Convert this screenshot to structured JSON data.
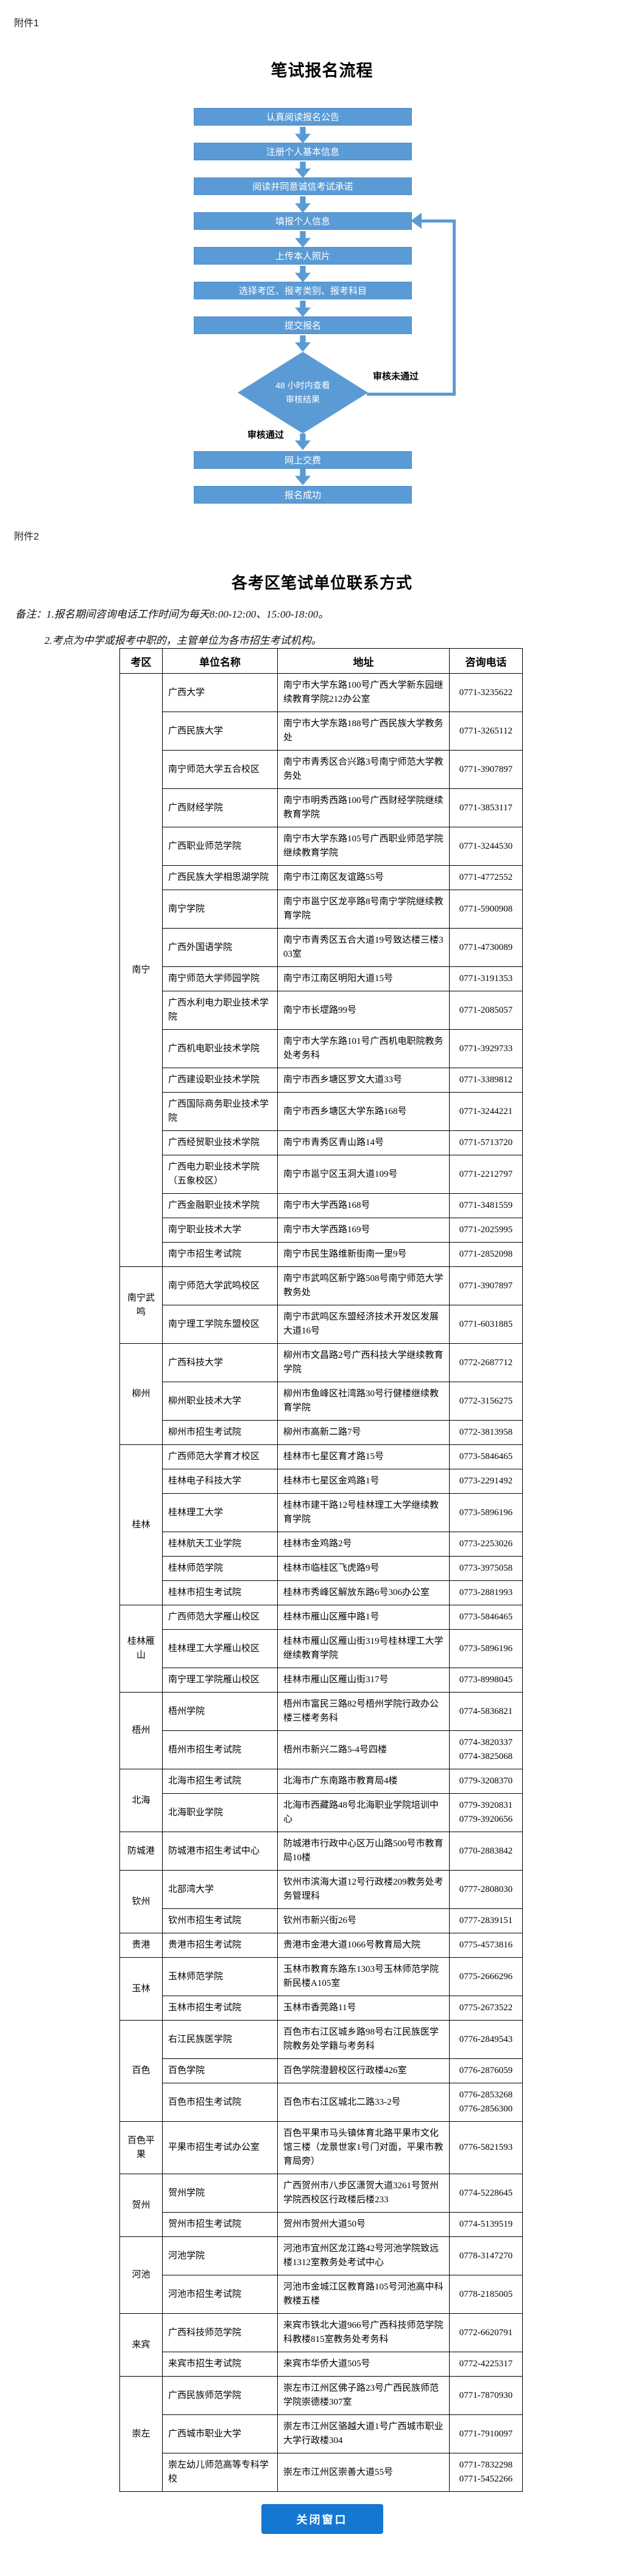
{
  "page": {
    "attachment1_label": "附件1",
    "attachment2_label": "附件2"
  },
  "flowchart": {
    "title": "笔试报名流程",
    "steps": [
      "认真阅读报名公告",
      "注册个人基本信息",
      "阅读并同意诚信考试承诺",
      "填报个人信息",
      "上传本人照片",
      "选择考区、报考类别、报考科目",
      "提交报名"
    ],
    "decision": {
      "line1": "48 小时内查看",
      "line2": "审核结果"
    },
    "fail_label": "审核未通过",
    "pass_label": "审核通过",
    "post_steps": [
      "网上交费",
      "报名成功"
    ],
    "colors": {
      "shape_fill": "#5B9BD5",
      "shape_text": "#ffffff"
    }
  },
  "contact_section": {
    "title": "各考区笔试单位联系方式",
    "notes": [
      "备注：1.报名期间咨询电话工作时间为每天8:00-12:00、15:00-18:00。",
      "2.考点为中学或报考中职的，主管单位为各市招生考试机构。"
    ],
    "table": {
      "headers": [
        "考区",
        "单位名称",
        "地址",
        "咨询电话"
      ],
      "groups": [
        {
          "area": "南宁",
          "units": [
            {
              "name": "广西大学",
              "address": "南宁市大学东路100号广西大学新东园继续教育学院212办公室",
              "phones": [
                "0771-3235622"
              ]
            },
            {
              "name": "广西民族大学",
              "address": "南宁市大学东路188号广西民族大学教务处",
              "phones": [
                "0771-3265112"
              ]
            },
            {
              "name": "南宁师范大学五合校区",
              "address": "南宁市青秀区合兴路3号南宁师范大学教务处",
              "phones": [
                "0771-3907897"
              ]
            },
            {
              "name": "广西财经学院",
              "address": "南宁市明秀西路100号广西财经学院继续教育学院",
              "phones": [
                "0771-3853117"
              ]
            },
            {
              "name": "广西职业师范学院",
              "address": "南宁市大学东路105号广西职业师范学院继续教育学院",
              "phones": [
                "0771-3244530"
              ]
            },
            {
              "name": "广西民族大学相思湖学院",
              "address": "南宁市江南区友谊路55号",
              "phones": [
                "0771-4772552"
              ]
            },
            {
              "name": "南宁学院",
              "address": "南宁市邕宁区龙亭路8号南宁学院继续教育学院",
              "phones": [
                "0771-5900908"
              ]
            },
            {
              "name": "广西外国语学院",
              "address": "南宁市青秀区五合大道19号致达楼三楼303室",
              "phones": [
                "0771-4730089"
              ]
            },
            {
              "name": "南宁师范大学师园学院",
              "address": "南宁市江南区明阳大道15号",
              "phones": [
                "0771-3191353"
              ]
            },
            {
              "name": "广西水利电力职业技术学院",
              "address": "南宁市长堽路99号",
              "phones": [
                "0771-2085057"
              ]
            },
            {
              "name": "广西机电职业技术学院",
              "address": "南宁市大学东路101号广西机电职院教务处考务科",
              "phones": [
                "0771-3929733"
              ]
            },
            {
              "name": "广西建设职业技术学院",
              "address": "南宁市西乡塘区罗文大道33号",
              "phones": [
                "0771-3389812"
              ]
            },
            {
              "name": "广西国际商务职业技术学院",
              "address": "南宁市西乡塘区大学东路168号",
              "phones": [
                "0771-3244221"
              ]
            },
            {
              "name": "广西经贸职业技术学院",
              "address": "南宁市青秀区青山路14号",
              "phones": [
                "0771-5713720"
              ]
            },
            {
              "name": "广西电力职业技术学院（五象校区）",
              "address": "南宁市邕宁区玉洞大道109号",
              "phones": [
                "0771-2212797"
              ]
            },
            {
              "name": "广西金融职业技术学院",
              "address": "南宁市大学西路168号",
              "phones": [
                "0771-3481559"
              ]
            },
            {
              "name": "南宁职业技术大学",
              "address": "南宁市大学西路169号",
              "phones": [
                "0771-2025995"
              ]
            },
            {
              "name": "南宁市招生考试院",
              "address": "南宁市民生路维新街南一里9号",
              "phones": [
                "0771-2852098"
              ]
            }
          ]
        },
        {
          "area": "南宁武鸣",
          "units": [
            {
              "name": "南宁师范大学武鸣校区",
              "address": "南宁市武鸣区新宁路508号南宁师范大学教务处",
              "phones": [
                "0771-3907897"
              ]
            },
            {
              "name": "南宁理工学院东盟校区",
              "address": "南宁市武鸣区东盟经济技术开发区发展大道16号",
              "phones": [
                "0771-6031885"
              ]
            }
          ]
        },
        {
          "area": "柳州",
          "units": [
            {
              "name": "广西科技大学",
              "address": "柳州市文昌路2号广西科技大学继续教育学院",
              "phones": [
                "0772-2687712"
              ]
            },
            {
              "name": "柳州职业技术大学",
              "address": "柳州市鱼峰区社湾路30号行健楼继续教育学院",
              "phones": [
                "0772-3156275"
              ]
            },
            {
              "name": "柳州市招生考试院",
              "address": "柳州市高新二路7号",
              "phones": [
                "0772-3813958"
              ]
            }
          ]
        },
        {
          "area": "桂林",
          "units": [
            {
              "name": "广西师范大学育才校区",
              "address": "桂林市七星区育才路15号",
              "phones": [
                "0773-5846465"
              ]
            },
            {
              "name": "桂林电子科技大学",
              "address": "桂林市七星区金鸡路1号",
              "phones": [
                "0773-2291492"
              ]
            },
            {
              "name": "桂林理工大学",
              "address": "桂林市建干路12号桂林理工大学继续教育学院",
              "phones": [
                "0773-5896196"
              ]
            },
            {
              "name": "桂林航天工业学院",
              "address": "桂林市金鸡路2号",
              "phones": [
                "0773-2253026"
              ]
            },
            {
              "name": "桂林师范学院",
              "address": "桂林市临桂区飞虎路9号",
              "phones": [
                "0773-3975058"
              ]
            },
            {
              "name": "桂林市招生考试院",
              "address": "桂林市秀峰区解放东路6号306办公室",
              "phones": [
                "0773-2881993"
              ]
            }
          ]
        },
        {
          "area": "桂林雁山",
          "units": [
            {
              "name": "广西师范大学雁山校区",
              "address": "桂林市雁山区雁中路1号",
              "phones": [
                "0773-5846465"
              ]
            },
            {
              "name": "桂林理工大学雁山校区",
              "address": "桂林市雁山区雁山街319号桂林理工大学继续教育学院",
              "phones": [
                "0773-5896196"
              ]
            },
            {
              "name": "南宁理工学院雁山校区",
              "address": "桂林市雁山区雁山街317号",
              "phones": [
                "0773-8998045"
              ]
            }
          ]
        },
        {
          "area": "梧州",
          "units": [
            {
              "name": "梧州学院",
              "address": "梧州市富民三路82号梧州学院行政办公楼三楼考务科",
              "phones": [
                "0774-5836821"
              ]
            },
            {
              "name": "梧州市招生考试院",
              "address": "梧州市新兴二路5-4号四楼",
              "phones": [
                "0774-3820337",
                "0774-3825068"
              ]
            }
          ]
        },
        {
          "area": "北海",
          "units": [
            {
              "name": "北海市招生考试院",
              "address": "北海市广东南路市教育局4楼",
              "phones": [
                "0779-3208370"
              ]
            },
            {
              "name": "北海职业学院",
              "address": "北海市西藏路48号北海职业学院培训中心",
              "phones": [
                "0779-3920831",
                "0779-3920656"
              ]
            }
          ]
        },
        {
          "area": "防城港",
          "units": [
            {
              "name": "防城港市招生考试中心",
              "address": "防城港市行政中心区万山路500号市教育局10楼",
              "phones": [
                "0770-2883842"
              ]
            }
          ]
        },
        {
          "area": "钦州",
          "units": [
            {
              "name": "北部湾大学",
              "address": "钦州市滨海大道12号行政楼209教务处考务管理科",
              "phones": [
                "0777-2808030"
              ]
            },
            {
              "name": "钦州市招生考试院",
              "address": "钦州市新兴街26号",
              "phones": [
                "0777-2839151"
              ]
            }
          ]
        },
        {
          "area": "贵港",
          "units": [
            {
              "name": "贵港市招生考试院",
              "address": "贵港市金港大道1066号教育局大院",
              "phones": [
                "0775-4573816"
              ]
            }
          ]
        },
        {
          "area": "玉林",
          "units": [
            {
              "name": "玉林师范学院",
              "address": "玉林市教育东路东1303号玉林师范学院新民楼A105室",
              "phones": [
                "0775-2666296"
              ]
            },
            {
              "name": "玉林市招生考试院",
              "address": "玉林市香莞路11号",
              "phones": [
                "0775-2673522"
              ]
            }
          ]
        },
        {
          "area": "百色",
          "units": [
            {
              "name": "右江民族医学院",
              "address": "百色市右江区城乡路98号右江民族医学院教务处学籍与考务科",
              "phones": [
                "0776-2849543"
              ]
            },
            {
              "name": "百色学院",
              "address": "百色学院澄碧校区行政楼426室",
              "phones": [
                "0776-2876059"
              ]
            },
            {
              "name": "百色市招生考试院",
              "address": "百色市右江区城北二路33-2号",
              "phones": [
                "0776-2853268",
                "0776-2856300"
              ]
            }
          ]
        },
        {
          "area": "百色平果",
          "units": [
            {
              "name": "平果市招生考试办公室",
              "address": "百色平果市马头镇体育北路平果市文化馆三楼（龙景世家1号门对面，平果市教育局旁）",
              "phones": [
                "0776-5821593"
              ]
            }
          ]
        },
        {
          "area": "贺州",
          "units": [
            {
              "name": "贺州学院",
              "address": "广西贺州市八步区潇贺大道3261号贺州学院西校区行政楼后楼233",
              "phones": [
                "0774-5228645"
              ]
            },
            {
              "name": "贺州市招生考试院",
              "address": "贺州市贺州大道50号",
              "phones": [
                "0774-5139519"
              ]
            }
          ]
        },
        {
          "area": "河池",
          "units": [
            {
              "name": "河池学院",
              "address": "河池市宜州区龙江路42号河池学院致远楼1312室教务处考试中心",
              "phones": [
                "0778-3147270"
              ]
            },
            {
              "name": "河池市招生考试院",
              "address": "河池市金城江区教育路105号河池高中科教楼五楼",
              "phones": [
                "0778-2185005"
              ]
            }
          ]
        },
        {
          "area": "来宾",
          "units": [
            {
              "name": "广西科技师范学院",
              "address": "来宾市铁北大道966号广西科技师范学院科教楼815室教务处考务科",
              "phones": [
                "0772-6620791"
              ]
            },
            {
              "name": "来宾市招生考试院",
              "address": "来宾市华侨大道505号",
              "phones": [
                "0772-4225317"
              ]
            }
          ]
        },
        {
          "area": "崇左",
          "units": [
            {
              "name": "广西民族师范学院",
              "address": "崇左市江州区佛子路23号广西民族师范学院崇德楼307室",
              "phones": [
                "0771-7870930"
              ]
            },
            {
              "name": "广西城市职业大学",
              "address": "崇左市江州区骆越大道1号广西城市职业大学行政楼304",
              "phones": [
                "0771-7910097"
              ]
            },
            {
              "name": "崇左幼儿师范高等专科学校",
              "address": "崇左市江州区崇善大道55号",
              "phones": [
                "0771-7832298",
                "0771-5452266"
              ]
            }
          ]
        }
      ]
    }
  },
  "footer": {
    "close_button_label": "关闭窗口",
    "button_color": "#1478d2"
  }
}
